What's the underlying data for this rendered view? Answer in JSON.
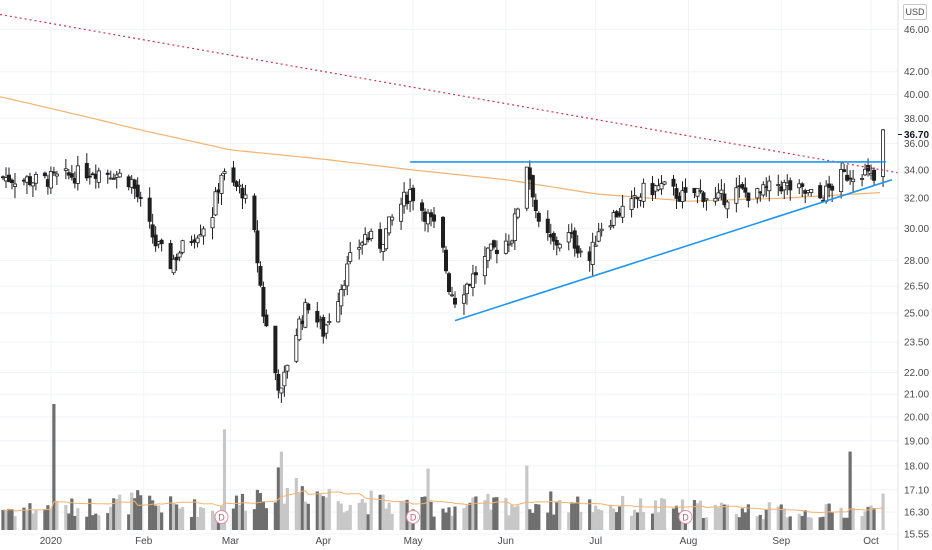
{
  "currency": "USD",
  "chart_data": {
    "type": "candlestick",
    "y_scale": "log",
    "ylim": [
      15.55,
      49.0
    ],
    "price_ticks": [
      "46.00",
      "42.00",
      "40.00",
      "38.00",
      "36.00",
      "34.00",
      "32.00",
      "30.00",
      "28.00",
      "26.50",
      "25.00",
      "23.50",
      "22.00",
      "21.00",
      "20.00",
      "19.00",
      "18.00",
      "17.10",
      "16.30",
      "15.55"
    ],
    "current_price": "36.70",
    "x_ticks": [
      {
        "label": "2020",
        "date": "2020-01-01"
      },
      {
        "label": "Feb",
        "date": "2020-02-01"
      },
      {
        "label": "Mar",
        "date": "2020-03-01"
      },
      {
        "label": "Apr",
        "date": "2020-04-01"
      },
      {
        "label": "May",
        "date": "2020-05-01"
      },
      {
        "label": "Jun",
        "date": "2020-06-01"
      },
      {
        "label": "Jul",
        "date": "2020-07-01"
      },
      {
        "label": "Aug",
        "date": "2020-08-01"
      },
      {
        "label": "Sep",
        "date": "2020-09-01"
      },
      {
        "label": "Oct",
        "date": "2020-10-01"
      }
    ],
    "x_range": [
      "2019-12-15",
      "2020-10-10"
    ],
    "price_anchors": [
      [
        "2019-12-15",
        33.5
      ],
      [
        "2019-12-28",
        33.2
      ],
      [
        "2020-01-08",
        33.6
      ],
      [
        "2020-01-15",
        34.0
      ],
      [
        "2020-01-22",
        33.8
      ],
      [
        "2020-01-28",
        33.2
      ],
      [
        "2020-02-01",
        31.0
      ],
      [
        "2020-02-05",
        29.0
      ],
      [
        "2020-02-10",
        27.8
      ],
      [
        "2020-02-14",
        28.8
      ],
      [
        "2020-02-18",
        29.6
      ],
      [
        "2020-02-21",
        30.2
      ],
      [
        "2020-02-24",
        31.0
      ],
      [
        "2020-02-27",
        33.8
      ],
      [
        "2020-03-01",
        33.0
      ],
      [
        "2020-03-05",
        32.5
      ],
      [
        "2020-03-09",
        29.5
      ],
      [
        "2020-03-12",
        25.0
      ],
      [
        "2020-03-16",
        22.0
      ],
      [
        "2020-03-18",
        21.0
      ],
      [
        "2020-03-20",
        22.5
      ],
      [
        "2020-03-24",
        24.5
      ],
      [
        "2020-03-27",
        25.5
      ],
      [
        "2020-04-01",
        24.0
      ],
      [
        "2020-04-06",
        26.0
      ],
      [
        "2020-04-10",
        28.0
      ],
      [
        "2020-04-15",
        29.5
      ],
      [
        "2020-04-20",
        29.0
      ],
      [
        "2020-04-25",
        31.0
      ],
      [
        "2020-04-30",
        32.5
      ],
      [
        "2020-05-05",
        31.0
      ],
      [
        "2020-05-10",
        29.5
      ],
      [
        "2020-05-13",
        26.5
      ],
      [
        "2020-05-15",
        25.8
      ],
      [
        "2020-05-20",
        26.8
      ],
      [
        "2020-05-27",
        28.5
      ],
      [
        "2020-06-03",
        29.5
      ],
      [
        "2020-06-08",
        34.5
      ],
      [
        "2020-06-10",
        32.5
      ],
      [
        "2020-06-12",
        30.0
      ],
      [
        "2020-06-17",
        29.0
      ],
      [
        "2020-06-22",
        29.5
      ],
      [
        "2020-06-29",
        28.0
      ],
      [
        "2020-07-02",
        30.0
      ],
      [
        "2020-07-08",
        31.0
      ],
      [
        "2020-07-13",
        31.5
      ],
      [
        "2020-07-17",
        32.5
      ],
      [
        "2020-07-23",
        32.8
      ],
      [
        "2020-07-31",
        32.0
      ],
      [
        "2020-08-04",
        32.5
      ],
      [
        "2020-08-10",
        31.8
      ],
      [
        "2020-08-17",
        32.5
      ],
      [
        "2020-08-24",
        32.2
      ],
      [
        "2020-08-31",
        33.0
      ],
      [
        "2020-09-07",
        32.5
      ],
      [
        "2020-09-14",
        32.0
      ],
      [
        "2020-09-21",
        33.5
      ],
      [
        "2020-09-28",
        34.0
      ],
      [
        "2020-10-02",
        33.2
      ],
      [
        "2020-10-05",
        36.7
      ]
    ],
    "series": [
      {
        "type": "moving_average",
        "color": "#f4b26f",
        "points": [
          [
            "2019-12-15",
            39.8
          ],
          [
            "2020-02-01",
            37.0
          ],
          [
            "2020-03-01",
            35.5
          ],
          [
            "2020-04-01",
            34.8
          ],
          [
            "2020-05-01",
            34.0
          ],
          [
            "2020-06-01",
            33.3
          ],
          [
            "2020-07-01",
            32.3
          ],
          [
            "2020-08-01",
            31.8
          ],
          [
            "2020-09-01",
            32.0
          ],
          [
            "2020-10-05",
            32.4
          ]
        ]
      }
    ],
    "annotations": [
      {
        "type": "trend_line",
        "style": "dotted",
        "color": "#c9394d",
        "from": [
          "2019-12-15",
          47.5
        ],
        "to": [
          "2020-10-10",
          33.8
        ]
      },
      {
        "type": "horizontal_line",
        "color": "#2196f3",
        "from": [
          "2020-04-30",
          34.6
        ],
        "to": [
          "2020-10-06",
          34.6
        ]
      },
      {
        "type": "trend_line",
        "color": "#2196f3",
        "from": [
          "2020-05-15",
          24.6
        ],
        "to": [
          "2020-10-08",
          33.3
        ]
      }
    ],
    "volume_scale_max": 10.0,
    "volume_anchors": [
      [
        "2019-12-15",
        1.5
      ],
      [
        "2020-01-10",
        1.6
      ],
      [
        "2020-01-30",
        2.0
      ],
      [
        "2020-02-10",
        1.7
      ],
      [
        "2020-02-28",
        1.5
      ],
      [
        "2020-03-10",
        2.6
      ],
      [
        "2020-03-20",
        3.4
      ],
      [
        "2020-04-05",
        2.3
      ],
      [
        "2020-04-25",
        1.8
      ],
      [
        "2020-05-10",
        1.6
      ],
      [
        "2020-06-10",
        2.0
      ],
      [
        "2020-07-10",
        1.7
      ],
      [
        "2020-08-10",
        1.5
      ],
      [
        "2020-09-10",
        1.3
      ],
      [
        "2020-10-05",
        1.4
      ]
    ],
    "volume_spikes": [
      [
        "2020-01-02",
        9.0
      ],
      [
        "2020-02-28",
        7.2
      ],
      [
        "2020-03-18",
        5.6
      ],
      [
        "2020-05-06",
        4.4
      ],
      [
        "2020-06-08",
        4.6
      ],
      [
        "2020-08-01",
        4.2
      ],
      [
        "2020-09-24",
        5.6
      ],
      [
        "2020-10-05",
        2.6
      ]
    ],
    "volume_ma_color": "#f4b26f",
    "event_markers": [
      {
        "label": "D",
        "date": "2020-02-27"
      },
      {
        "label": "D",
        "date": "2020-05-01"
      },
      {
        "label": "D",
        "date": "2020-07-31"
      }
    ]
  }
}
